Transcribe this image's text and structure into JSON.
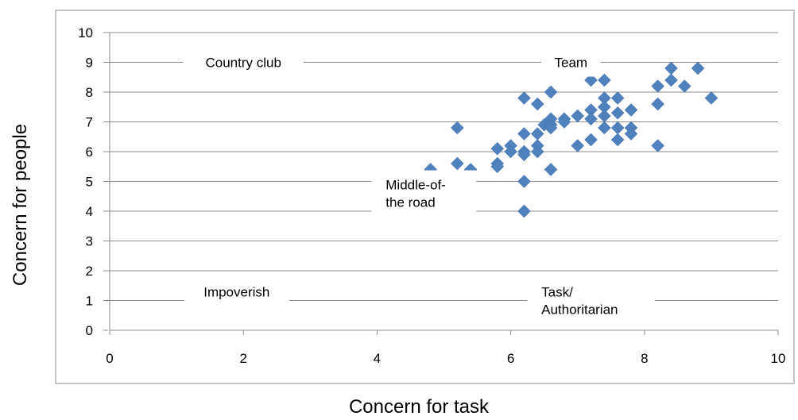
{
  "chart_data": {
    "type": "scatter",
    "xlabel": "Concern for task",
    "ylabel": "Concern for people",
    "xlim": [
      0,
      10
    ],
    "ylim": [
      0,
      10
    ],
    "x_ticks": [
      "0",
      "2",
      "4",
      "6",
      "8",
      "10"
    ],
    "y_ticks": [
      "0",
      "1",
      "2",
      "3",
      "4",
      "5",
      "6",
      "7",
      "8",
      "9",
      "10"
    ],
    "grid": "horizontal",
    "legend": "none",
    "marker": "diamond",
    "marker_color": "#4F81BD",
    "annotations": [
      {
        "lines": [
          "Country club"
        ],
        "x": 2.0,
        "y": 9.0
      },
      {
        "lines": [
          "Team"
        ],
        "x": 6.9,
        "y": 9.0
      },
      {
        "lines": [
          "Middle-of-",
          "the road"
        ],
        "x": 4.7,
        "y": 4.6
      },
      {
        "lines": [
          "Impoverish"
        ],
        "x": 1.9,
        "y": 1.3
      },
      {
        "lines": [
          "Task/",
          "Authoritarian"
        ],
        "x": 7.2,
        "y": 1.0
      }
    ],
    "points": [
      {
        "x": 4.8,
        "y": 5.4
      },
      {
        "x": 5.2,
        "y": 6.8
      },
      {
        "x": 5.2,
        "y": 5.6
      },
      {
        "x": 5.4,
        "y": 5.4
      },
      {
        "x": 5.8,
        "y": 6.1
      },
      {
        "x": 5.8,
        "y": 5.6
      },
      {
        "x": 5.8,
        "y": 5.5
      },
      {
        "x": 6.0,
        "y": 6.2
      },
      {
        "x": 6.0,
        "y": 6.0
      },
      {
        "x": 6.2,
        "y": 7.8
      },
      {
        "x": 6.2,
        "y": 6.6
      },
      {
        "x": 6.2,
        "y": 6.0
      },
      {
        "x": 6.2,
        "y": 5.9
      },
      {
        "x": 6.2,
        "y": 5.0
      },
      {
        "x": 6.2,
        "y": 4.0
      },
      {
        "x": 6.4,
        "y": 7.6
      },
      {
        "x": 6.4,
        "y": 6.6
      },
      {
        "x": 6.4,
        "y": 6.2
      },
      {
        "x": 6.4,
        "y": 6.0
      },
      {
        "x": 6.5,
        "y": 6.9
      },
      {
        "x": 6.6,
        "y": 8.0
      },
      {
        "x": 6.6,
        "y": 7.1
      },
      {
        "x": 6.6,
        "y": 6.9
      },
      {
        "x": 6.6,
        "y": 6.8
      },
      {
        "x": 6.6,
        "y": 5.4
      },
      {
        "x": 6.8,
        "y": 7.1
      },
      {
        "x": 6.8,
        "y": 7.0
      },
      {
        "x": 7.0,
        "y": 7.2
      },
      {
        "x": 7.0,
        "y": 6.2
      },
      {
        "x": 7.2,
        "y": 8.4
      },
      {
        "x": 7.2,
        "y": 7.4
      },
      {
        "x": 7.2,
        "y": 7.1
      },
      {
        "x": 7.2,
        "y": 6.4
      },
      {
        "x": 7.4,
        "y": 8.4
      },
      {
        "x": 7.4,
        "y": 7.8
      },
      {
        "x": 7.4,
        "y": 7.5
      },
      {
        "x": 7.4,
        "y": 7.2
      },
      {
        "x": 7.4,
        "y": 6.8
      },
      {
        "x": 7.6,
        "y": 7.8
      },
      {
        "x": 7.6,
        "y": 7.3
      },
      {
        "x": 7.6,
        "y": 6.8
      },
      {
        "x": 7.6,
        "y": 6.4
      },
      {
        "x": 7.8,
        "y": 7.4
      },
      {
        "x": 7.8,
        "y": 6.8
      },
      {
        "x": 7.8,
        "y": 6.6
      },
      {
        "x": 8.2,
        "y": 8.2
      },
      {
        "x": 8.2,
        "y": 7.6
      },
      {
        "x": 8.2,
        "y": 6.2
      },
      {
        "x": 8.4,
        "y": 8.8
      },
      {
        "x": 8.4,
        "y": 8.4
      },
      {
        "x": 8.6,
        "y": 8.2
      },
      {
        "x": 8.8,
        "y": 8.8
      },
      {
        "x": 9.0,
        "y": 7.8
      }
    ]
  }
}
